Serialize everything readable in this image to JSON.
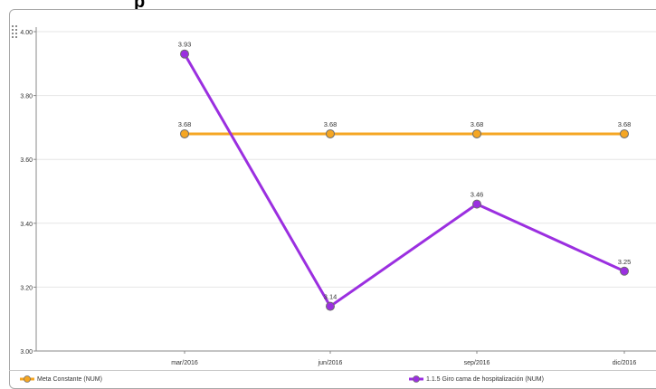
{
  "page": {
    "heading_fragment": "p"
  },
  "chart_data": {
    "type": "line",
    "x": [
      "mar/2016",
      "jun/2016",
      "sep/2016",
      "dic/2016"
    ],
    "ylim": [
      3.0,
      4.0
    ],
    "yticks": [
      "3.00",
      "3.20",
      "3.40",
      "3.60",
      "3.80",
      "4.00"
    ],
    "grid": true,
    "legend_position": "bottom",
    "series": [
      {
        "name": "Meta Constante (NUM)",
        "color": "#f5a623",
        "values": [
          3.68,
          3.68,
          3.68,
          3.68
        ],
        "labels": [
          "3.68",
          "3.68",
          "3.68",
          "3.68"
        ]
      },
      {
        "name": "1.1.5 Giro cama de hospitalización (NUM)",
        "color": "#9b2fe0",
        "values": [
          3.93,
          3.14,
          3.46,
          3.25
        ],
        "labels": [
          "3.93",
          "3.14",
          "3.46",
          "3.25"
        ]
      }
    ]
  }
}
